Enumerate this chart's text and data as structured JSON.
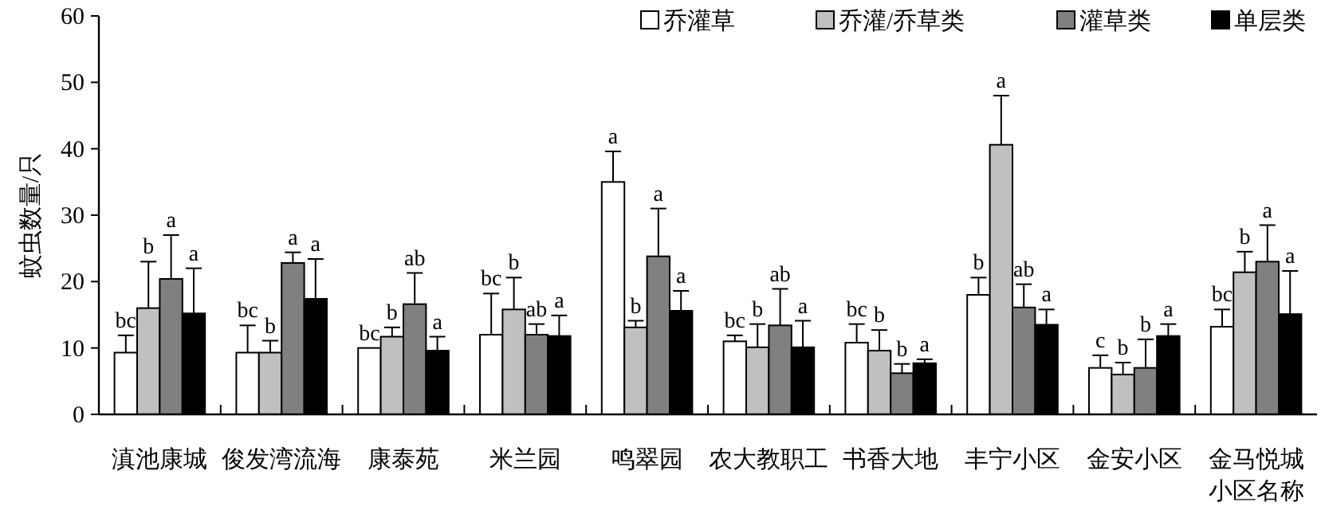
{
  "chart_data": {
    "type": "bar",
    "ylabel": "蚊虫数量/只",
    "xlabel": "小区名称",
    "categories": [
      "滇池康城",
      "俊发湾流海",
      "康泰苑",
      "米兰园",
      "鸣翠园",
      "农大教职工",
      "书香大地",
      "丰宁小区",
      "金安小区",
      "金马悦城"
    ],
    "ylim": [
      0,
      60
    ],
    "yticks": [
      0,
      10,
      20,
      30,
      40,
      50,
      60
    ],
    "legend": "top right",
    "series": [
      {
        "name": "乔灌草",
        "color": "#ffffff",
        "values": [
          9.3,
          9.3,
          10.0,
          12.0,
          35.0,
          11.0,
          10.8,
          18.0,
          7.0,
          13.2
        ],
        "errors": [
          [
            9.3,
            11.9
          ],
          [
            9.3,
            13.4
          ],
          null,
          [
            12.0,
            18.2
          ],
          [
            35.0,
            39.6
          ],
          [
            11.0,
            11.9
          ],
          [
            10.8,
            13.6
          ],
          [
            18.0,
            20.6
          ],
          [
            7.0,
            8.9
          ],
          [
            13.2,
            15.8
          ]
        ],
        "value_labels": [
          "bc",
          "bc",
          "bc",
          "bc",
          "a",
          "bc",
          "bc",
          "b",
          "c",
          "bc"
        ]
      },
      {
        "name": "乔灌/乔草类",
        "color": "#c0c0c0",
        "values": [
          16.0,
          9.3,
          11.7,
          15.8,
          13.1,
          10.1,
          9.6,
          40.6,
          6.0,
          21.4
        ],
        "errors": [
          [
            16.0,
            23.0
          ],
          [
            9.3,
            11.1
          ],
          [
            11.7,
            13.1
          ],
          [
            15.8,
            20.6
          ],
          [
            13.1,
            14.1
          ],
          [
            10.1,
            13.6
          ],
          [
            9.6,
            12.7
          ],
          [
            40.6,
            48.0
          ],
          [
            6.0,
            7.8
          ],
          [
            21.4,
            24.5
          ]
        ],
        "value_labels": [
          "b",
          "b",
          "b",
          "b",
          "b",
          "b",
          "b",
          "a",
          "b",
          "b"
        ]
      },
      {
        "name": "灌草类",
        "color": "#808080",
        "values": [
          20.4,
          22.8,
          16.6,
          12.0,
          23.8,
          13.4,
          6.2,
          16.1,
          7.0,
          23.0
        ],
        "errors": [
          [
            20.4,
            27.0
          ],
          [
            22.8,
            24.4
          ],
          [
            16.6,
            21.3
          ],
          [
            12.0,
            13.6
          ],
          [
            23.8,
            31.0
          ],
          [
            13.4,
            18.9
          ],
          [
            6.2,
            7.6
          ],
          [
            16.1,
            19.6
          ],
          [
            7.0,
            11.3
          ],
          [
            23.0,
            28.5
          ]
        ],
        "value_labels": [
          "a",
          "a",
          "ab",
          "ab",
          "a",
          "ab",
          "b",
          "ab",
          "b",
          "a"
        ]
      },
      {
        "name": "单层类",
        "color": "#000000",
        "values": [
          15.2,
          17.4,
          9.6,
          11.8,
          15.6,
          10.1,
          7.7,
          13.5,
          11.8,
          15.1
        ],
        "errors": [
          [
            15.2,
            22.0
          ],
          [
            17.4,
            23.4
          ],
          [
            9.6,
            11.7
          ],
          [
            11.8,
            14.9
          ],
          [
            15.6,
            18.6
          ],
          [
            10.1,
            14.1
          ],
          [
            7.7,
            8.3
          ],
          [
            13.5,
            15.8
          ],
          [
            11.8,
            13.6
          ],
          [
            15.1,
            21.6
          ]
        ],
        "value_labels": [
          "a",
          "a",
          "a",
          "a",
          "a",
          "a",
          "a",
          "a",
          "a",
          "a"
        ]
      }
    ]
  }
}
